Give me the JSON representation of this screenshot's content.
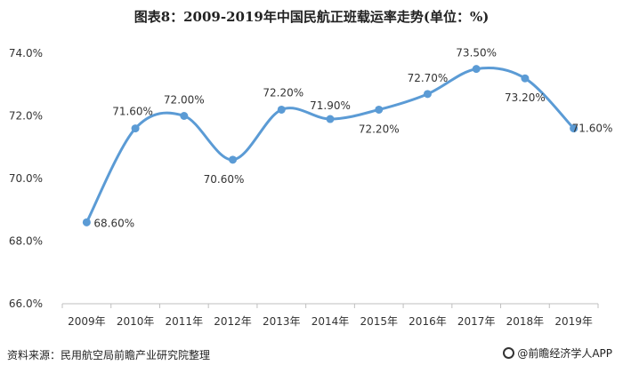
{
  "title": "图表8：2009-2019年中国民航正班载运率走势(单位：%)",
  "source": "资料来源：民用航空局前瞻产业研究院整理",
  "brand": "@前瞻经济学人APP",
  "colors": {
    "line": "#5b9bd5",
    "point": "#5b9bd5",
    "grid": "#e6e6e6",
    "axis": "#bfbfbf"
  },
  "chart_data": {
    "type": "line",
    "title": "图表8：2009-2019年中国民航正班载运率走势(单位：%)",
    "xlabel": "",
    "ylabel": "",
    "categories": [
      "2009年",
      "2010年",
      "2011年",
      "2012年",
      "2013年",
      "2014年",
      "2015年",
      "2016年",
      "2017年",
      "2018年",
      "2019年"
    ],
    "series": [
      {
        "values": [
          68.6,
          71.6,
          72.0,
          70.6,
          72.2,
          71.9,
          72.2,
          72.7,
          73.5,
          73.2,
          71.6
        ]
      }
    ],
    "data_labels": [
      "68.60%",
      "71.60%",
      "72.00%",
      "70.60%",
      "72.20%",
      "71.90%",
      "72.20%",
      "72.70%",
      "73.50%",
      "73.20%",
      "71.60%"
    ],
    "y_ticks": [
      66,
      68,
      70,
      72,
      74
    ],
    "y_tick_labels": [
      "66.0%",
      "68.0%",
      "70.0%",
      "72.0%",
      "74.0%"
    ],
    "ylim": [
      66,
      74
    ],
    "grid": false,
    "smooth": true,
    "legend": "none"
  }
}
